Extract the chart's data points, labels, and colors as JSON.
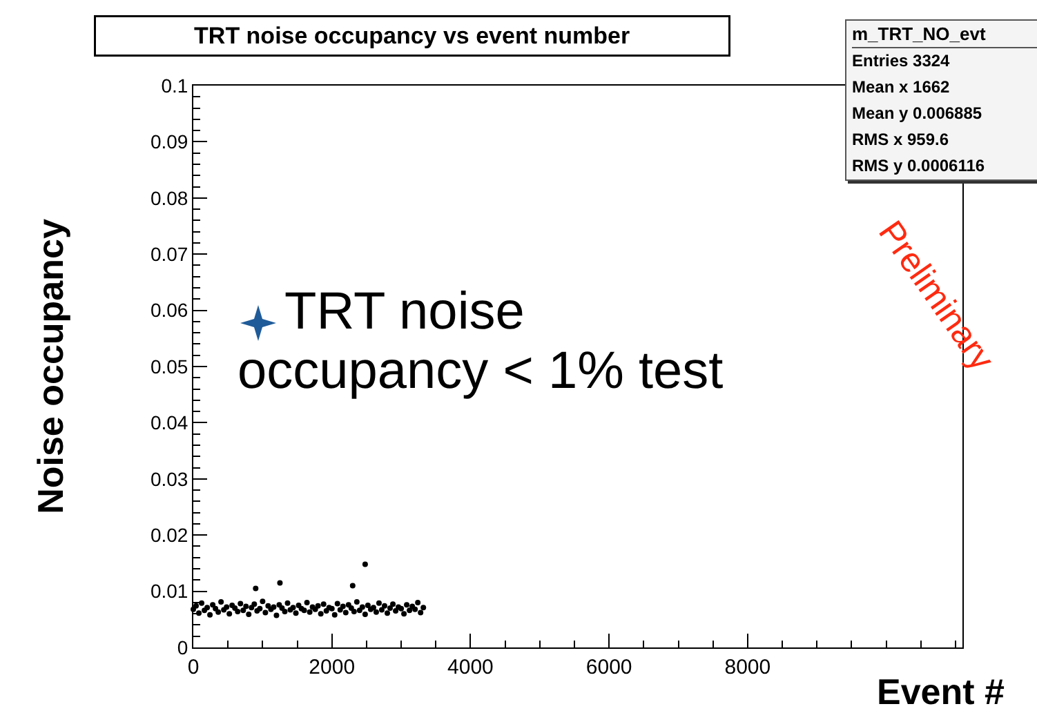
{
  "chart_data": {
    "type": "scatter",
    "title": "TRT noise occupancy vs event number",
    "xlabel": "Event #",
    "ylabel": "Noise occupancy",
    "xlim": [
      0,
      11100
    ],
    "xticks": [
      0,
      2000,
      4000,
      6000,
      8000
    ],
    "ylim": [
      0,
      0.1
    ],
    "yticks": [
      0,
      0.01,
      0.02,
      0.03,
      0.04,
      0.05,
      0.06,
      0.07,
      0.08,
      0.09,
      0.1
    ],
    "marker": "circle",
    "grid": false,
    "annotations": [
      "TRT noise\noccupancy < 1% test",
      "m_TRT_NO_evt",
      "Entries 3324",
      "Mean x 1662",
      "Mean y 0.006885",
      "RMS x 959.6",
      "RMS y 0.0006116",
      "Preliminary"
    ],
    "series": [
      {
        "color": "#000000",
        "x": [
          0,
          40,
          80,
          120,
          160,
          200,
          240,
          280,
          320,
          360,
          400,
          440,
          480,
          520,
          560,
          600,
          640,
          680,
          720,
          760,
          800,
          840,
          880,
          920,
          960,
          1000,
          1040,
          1080,
          1120,
          1160,
          1200,
          1240,
          1280,
          1320,
          1360,
          1400,
          1440,
          1480,
          1520,
          1560,
          1600,
          1640,
          1680,
          1720,
          1760,
          1800,
          1840,
          1880,
          1920,
          1960,
          2000,
          2040,
          2080,
          2120,
          2160,
          2200,
          2240,
          2280,
          2320,
          2360,
          2400,
          2440,
          2480,
          2520,
          2560,
          2600,
          2640,
          2680,
          2720,
          2760,
          2800,
          2840,
          2880,
          2920,
          2960,
          3000,
          3040,
          3080,
          3120,
          3160,
          3200,
          3240,
          3280,
          3320,
          900,
          1250,
          2300,
          2480
        ],
        "values": [
          0.0068,
          0.0074,
          0.0061,
          0.0079,
          0.0066,
          0.0071,
          0.0058,
          0.0076,
          0.0069,
          0.0063,
          0.0081,
          0.0067,
          0.0072,
          0.006,
          0.0075,
          0.007,
          0.0064,
          0.0078,
          0.0066,
          0.0073,
          0.0059,
          0.0071,
          0.0077,
          0.0065,
          0.0069,
          0.0082,
          0.0062,
          0.0074,
          0.0068,
          0.0072,
          0.0057,
          0.0076,
          0.007,
          0.0064,
          0.0079,
          0.0067,
          0.0071,
          0.0061,
          0.0075,
          0.0069,
          0.0066,
          0.008,
          0.0063,
          0.0072,
          0.0068,
          0.0074,
          0.006,
          0.0077,
          0.0065,
          0.0071,
          0.0069,
          0.0058,
          0.0078,
          0.0067,
          0.0073,
          0.0062,
          0.0076,
          0.007,
          0.0064,
          0.0081,
          0.0066,
          0.0072,
          0.0059,
          0.0075,
          0.0068,
          0.0071,
          0.0063,
          0.0079,
          0.0067,
          0.0074,
          0.0061,
          0.007,
          0.0077,
          0.0065,
          0.0072,
          0.0069,
          0.006,
          0.0076,
          0.0066,
          0.0073,
          0.0068,
          0.008,
          0.0062,
          0.0071,
          0.0105,
          0.0115,
          0.011,
          0.0148
        ]
      }
    ]
  }
}
